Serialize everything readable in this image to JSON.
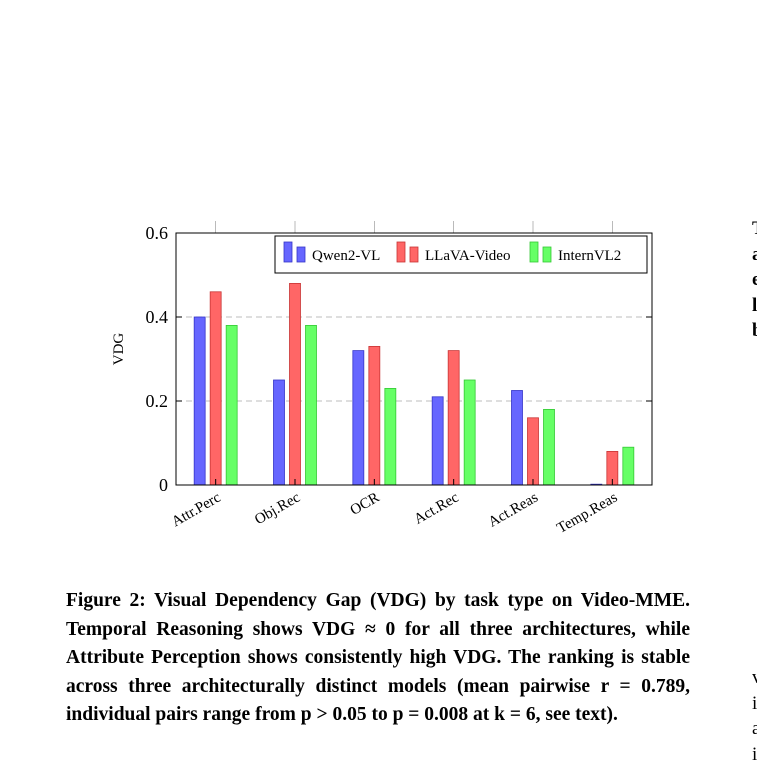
{
  "chart_data": {
    "type": "bar",
    "categories": [
      "Attr.Perc",
      "Obj.Rec",
      "OCR",
      "Act.Rec",
      "Act.Reas",
      "Temp.Reas"
    ],
    "series": [
      {
        "name": "Qwen2-VL",
        "values": [
          0.4,
          0.25,
          0.32,
          0.21,
          0.225,
          0.0
        ],
        "color": "#6666ff",
        "stroke": "#3535c8"
      },
      {
        "name": "LLaVA-Video",
        "values": [
          0.46,
          0.48,
          0.33,
          0.32,
          0.16,
          0.08
        ],
        "color": "#ff6666",
        "stroke": "#c83535"
      },
      {
        "name": "InternVL2",
        "values": [
          0.38,
          0.38,
          0.23,
          0.25,
          0.18,
          0.09
        ],
        "color": "#66ff66",
        "stroke": "#35c835"
      }
    ],
    "ylabel": "VDG",
    "xlabel": "",
    "ylim": [
      0,
      0.6
    ],
    "yticks": [
      "0",
      "0.2",
      "0.4",
      "0.6"
    ],
    "ytick_values": [
      0,
      0.2,
      0.4,
      0.6
    ],
    "grid": "horizontal dashed",
    "legend_position": "top-right"
  },
  "caption": {
    "label": "Figure 2:",
    "text": "Visual Dependency Gap (VDG) by task type on Video-MME. Temporal Reasoning shows VDG ≈ 0 for all three architectures, while Attribute Perception shows consistently high VDG. The ranking is stable across three architecturally distinct models (mean pairwise r = 0.789, individual pairs range from p > 0.05 to p = 0.008 at k = 6, see text)."
  },
  "side_text_top": [
    "T",
    "a",
    "e",
    "l",
    "b"
  ],
  "side_text_bottom": [
    "v",
    "i",
    "a",
    "i"
  ]
}
